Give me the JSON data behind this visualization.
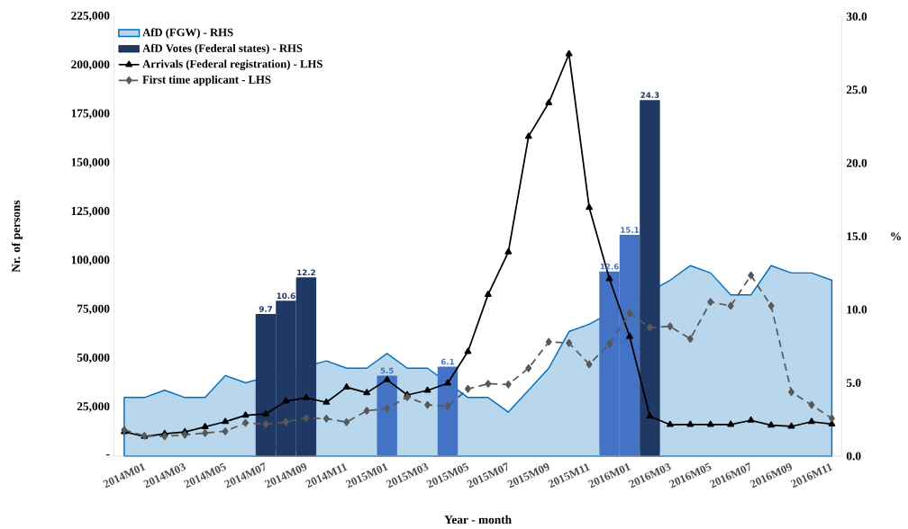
{
  "chart_data": {
    "type": "line",
    "xlabel": "Year - month",
    "ylabel": "Nr. of persons",
    "y2label": "%",
    "categories": [
      "2014M01",
      null,
      "2014M03",
      null,
      "2014M05",
      null,
      "2014M07",
      null,
      "2014M09",
      null,
      "2014M11",
      null,
      "2015M01",
      null,
      "2015M03",
      null,
      "2015M05",
      null,
      "2015M07",
      null,
      "2015M09",
      null,
      "2015M11",
      null,
      "2016M01",
      null,
      "2016M03",
      null,
      "2016M05",
      null,
      "2016M07",
      null,
      "2016M09",
      null,
      "2016M11",
      null
    ],
    "ylim": [
      0,
      225000
    ],
    "yticks": [
      {
        "value": 0,
        "label": "-"
      },
      {
        "value": 25000,
        "label": "25,000"
      },
      {
        "value": 50000,
        "label": "50,000"
      },
      {
        "value": 75000,
        "label": "75,000"
      },
      {
        "value": 100000,
        "label": "100,000"
      },
      {
        "value": 125000,
        "label": "125,000"
      },
      {
        "value": 150000,
        "label": "150,000"
      },
      {
        "value": 175000,
        "label": "175,000"
      },
      {
        "value": 200000,
        "label": "200,000"
      },
      {
        "value": 225000,
        "label": "225,000"
      }
    ],
    "y2lim": [
      0,
      30
    ],
    "y2ticks": [
      {
        "value": 0,
        "label": "0.0"
      },
      {
        "value": 5,
        "label": "5.0"
      },
      {
        "value": 10,
        "label": "10.0"
      },
      {
        "value": 15,
        "label": "15.0"
      },
      {
        "value": 20,
        "label": "20.0"
      },
      {
        "value": 25,
        "label": "25.0"
      },
      {
        "value": 30,
        "label": "30.0"
      }
    ],
    "legend": "top left",
    "series": [
      {
        "name": "AfD (FGW) - RHS",
        "type": "area",
        "axis": "y2",
        "color": "#0070c0",
        "values": [
          4.0,
          4.0,
          4.5,
          4.0,
          4.0,
          5.5,
          5.0,
          null,
          null,
          null,
          6.5,
          6.0,
          6.0,
          7.0,
          6.0,
          6.0,
          null,
          4.0,
          4.0,
          3.0,
          4.5,
          6.0,
          8.5,
          9.0,
          null,
          null,
          null,
          12.0,
          13.0,
          12.5,
          11.0,
          11.0,
          13.0,
          12.5,
          12.5,
          12.0
        ]
      },
      {
        "name": "AfD Votes (Federal states) - RHS",
        "type": "bar",
        "axis": "y2",
        "color": "#203864",
        "values": [
          null,
          null,
          null,
          null,
          null,
          null,
          null,
          9.7,
          10.6,
          12.2,
          null,
          null,
          null,
          5.5,
          null,
          null,
          6.1,
          null,
          null,
          null,
          null,
          null,
          null,
          null,
          12.6,
          15.1,
          24.3,
          null,
          null,
          null,
          null,
          null,
          null,
          null,
          null,
          null
        ],
        "colors": [
          null,
          null,
          null,
          null,
          null,
          null,
          null,
          "#203864",
          "#203864",
          "#203864",
          null,
          null,
          null,
          "#4472c4",
          null,
          null,
          "#4472c4",
          null,
          null,
          null,
          null,
          null,
          null,
          null,
          "#4472c4",
          "#4472c4",
          "#203864",
          null,
          null,
          null,
          null,
          null,
          null,
          null,
          null,
          null
        ],
        "value_labels": [
          null,
          null,
          null,
          null,
          null,
          null,
          null,
          "9.7",
          "10.6",
          "12.2",
          null,
          null,
          null,
          "5.5",
          null,
          null,
          "6.1",
          null,
          null,
          null,
          null,
          null,
          null,
          null,
          "12.6",
          "15.1",
          "24.3",
          null,
          null,
          null,
          null,
          null,
          null,
          null,
          null,
          null
        ]
      },
      {
        "name": "Arrivals (Federal registration) - LHS",
        "color": "#000000",
        "marker": "triangle",
        "line_style": "solid",
        "values": [
          12500,
          10000,
          11400,
          12400,
          15000,
          17600,
          20900,
          21600,
          28100,
          29900,
          27500,
          35300,
          32400,
          39100,
          31300,
          33600,
          37300,
          53500,
          82700,
          104500,
          163600,
          180800,
          205800,
          127200,
          90700,
          61200,
          20400,
          16100,
          16200,
          16200,
          16200,
          18300,
          15800,
          15200,
          17600,
          16400
        ]
      },
      {
        "name": "First time applicant - LHS",
        "color": "#595959",
        "marker": "diamond",
        "line_style": "dashed",
        "values": [
          13400,
          10400,
          10100,
          10900,
          11800,
          12700,
          17000,
          16300,
          17500,
          19500,
          19200,
          17400,
          23200,
          24400,
          30200,
          26200,
          25500,
          34400,
          37000,
          36700,
          45000,
          58500,
          57900,
          47000,
          57400,
          73100,
          65800,
          66400,
          60000,
          78900,
          76900,
          92500,
          76900,
          32800,
          26200,
          19300
        ]
      }
    ]
  }
}
